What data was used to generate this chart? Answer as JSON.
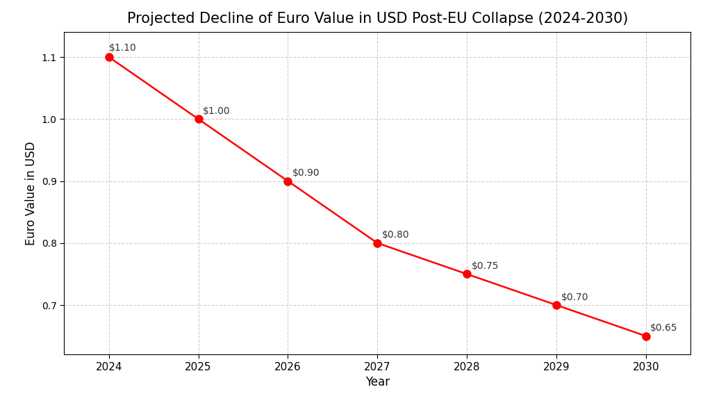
{
  "title": "Projected Decline of Euro Value in USD Post-EU Collapse (2024-2030)",
  "xlabel": "Year",
  "ylabel": "Euro Value in USD",
  "years": [
    2024,
    2025,
    2026,
    2027,
    2028,
    2029,
    2030
  ],
  "values": [
    1.1,
    1.0,
    0.9,
    0.8,
    0.75,
    0.7,
    0.65
  ],
  "labels": [
    "$1.10",
    "$1.00",
    "$0.90",
    "$0.80",
    "$0.75",
    "$0.70",
    "$0.65"
  ],
  "line_color": "#ff0000",
  "marker_color": "#ff0000",
  "marker_size": 8,
  "line_width": 1.8,
  "ylim": [
    0.62,
    1.14
  ],
  "yticks": [
    0.7,
    0.8,
    0.9,
    1.0,
    1.1
  ],
  "background_color": "#ffffff",
  "grid_color": "#cccccc",
  "title_fontsize": 15,
  "label_fontsize": 12,
  "tick_fontsize": 11,
  "annotation_fontsize": 10
}
